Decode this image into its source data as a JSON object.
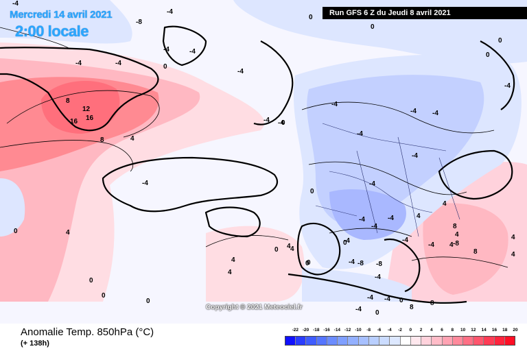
{
  "header": {
    "date": "Mercredi 14 avril 2021",
    "time": "2:00 locale",
    "run": "Run GFS 6 Z du Jeudi 8 avril 2021"
  },
  "copyright": "Copyright © 2021 Meteociel.fr",
  "footer": {
    "title": "Anomalie Temp. 850hPa (°C)",
    "subtitle": "(+ 138h)"
  },
  "legend": {
    "labels": [
      "-22",
      "-20",
      "-18",
      "-16",
      "-14",
      "-12",
      "-10",
      "-8",
      "-6",
      "-4",
      "-2",
      "0",
      "2",
      "4",
      "6",
      "8",
      "10",
      "12",
      "14",
      "16",
      "18",
      "20"
    ],
    "colors": [
      "#1010ff",
      "#2a3cff",
      "#3f5cff",
      "#5575ff",
      "#6b8cff",
      "#7f9fff",
      "#93b0ff",
      "#a7c0ff",
      "#b9cfff",
      "#cbdcff",
      "#dde8ff",
      "#ffffff",
      "#ffe8ee",
      "#ffd2dc",
      "#ffbcc8",
      "#ffa3b3",
      "#ff8a9c",
      "#ff7085",
      "#ff566d",
      "#ff3c55",
      "#ff243d",
      "#ff0f25"
    ]
  },
  "map": {
    "colors": {
      "warm_strong": "#ff8a92",
      "warm": "#ffb8c2",
      "warm_light": "#ffdde3",
      "neutral": "#f6f6ff",
      "cool_light": "#dde6ff",
      "cool": "#c3d0ff",
      "cool_strong": "#a9b8ff",
      "coast": "#000000",
      "border": "#283070"
    },
    "contour_labels": [
      "-4",
      "-8",
      "-4",
      "-4",
      "0",
      "-4",
      "-4",
      "0",
      "-4",
      "-4",
      "0",
      "0",
      "-4",
      "-4",
      "8",
      "12",
      "16",
      "16",
      "8",
      "4",
      "-4",
      "-4",
      "0",
      "-4",
      "-4",
      "-4",
      "-4",
      "-4",
      "-4",
      "0",
      "0",
      "4",
      "0",
      "-4",
      "-4",
      "-4",
      "-4",
      "4",
      "4",
      "0",
      "0",
      "0",
      "0",
      "0",
      "4",
      "4",
      "4",
      "-4",
      "0",
      "-8",
      "-8",
      "-4",
      "-4",
      "-4",
      "-8",
      "8",
      "8",
      "0",
      "4",
      "8",
      "4",
      "4",
      "4",
      "0",
      "-4",
      "-4",
      "0",
      "-4",
      "0",
      "4",
      "8"
    ]
  }
}
